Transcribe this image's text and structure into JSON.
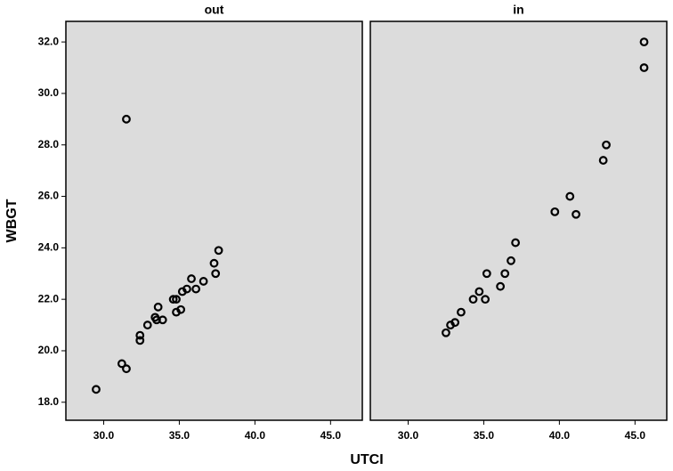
{
  "chart_data": {
    "type": "scatter",
    "x_label": "UTCI",
    "y_label": "WBGT",
    "xlim": [
      27.5,
      47.1
    ],
    "ylim": [
      17.3,
      32.8
    ],
    "xticks": [
      {
        "value": 30,
        "label": "30.0"
      },
      {
        "value": 35,
        "label": "35.0"
      },
      {
        "value": 40,
        "label": "40.0"
      },
      {
        "value": 45,
        "label": "45.0"
      }
    ],
    "yticks": [
      {
        "value": 18,
        "label": "18.0"
      },
      {
        "value": 20,
        "label": "20.0"
      },
      {
        "value": 22,
        "label": "22.0"
      },
      {
        "value": 24,
        "label": "24.0"
      },
      {
        "value": 26,
        "label": "26.0"
      },
      {
        "value": 28,
        "label": "28.0"
      },
      {
        "value": 30,
        "label": "30.0"
      },
      {
        "value": 32,
        "label": "32.0"
      }
    ],
    "color": "#000000",
    "background": "#dcdcdc",
    "panels": [
      {
        "title": "out",
        "x": [
          29.5,
          31.2,
          31.5,
          31.5,
          32.4,
          32.4,
          32.9,
          33.4,
          33.5,
          33.6,
          33.9,
          34.6,
          34.8,
          34.8,
          35.1,
          35.2,
          35.5,
          35.8,
          36.1,
          36.6,
          37.3,
          37.4,
          37.6
        ],
        "values": [
          18.5,
          19.5,
          19.3,
          29.0,
          20.6,
          20.4,
          21.0,
          21.3,
          21.2,
          21.7,
          21.2,
          22.0,
          22.0,
          21.5,
          21.6,
          22.3,
          22.4,
          22.8,
          22.4,
          22.7,
          23.4,
          23.0,
          23.9
        ]
      },
      {
        "title": "in",
        "x": [
          32.5,
          32.8,
          33.1,
          33.5,
          34.3,
          34.7,
          35.1,
          35.2,
          36.1,
          36.4,
          36.8,
          37.1,
          39.7,
          40.7,
          41.1,
          42.9,
          43.1,
          45.6,
          45.6
        ],
        "values": [
          20.7,
          21.0,
          21.1,
          21.5,
          22.0,
          22.3,
          22.0,
          23.0,
          22.5,
          23.0,
          23.5,
          24.2,
          25.4,
          26.0,
          25.3,
          27.4,
          28.0,
          31.0,
          32.0
        ]
      }
    ]
  }
}
